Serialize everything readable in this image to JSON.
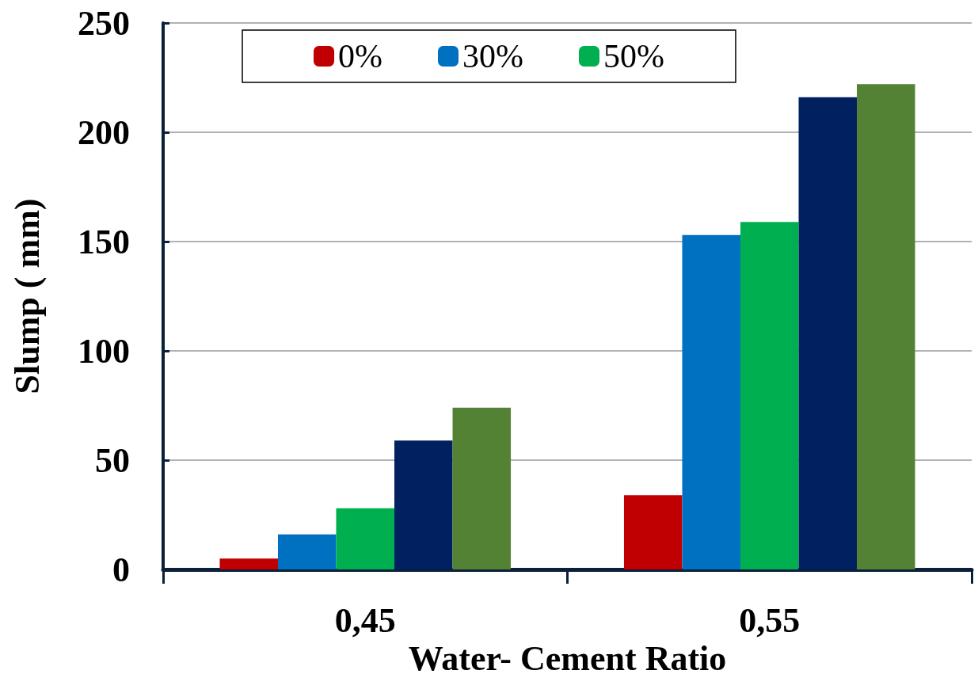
{
  "chart_data": {
    "type": "bar",
    "xlabel": "Water- Cement Ratio",
    "ylabel": "Slump ( mm)",
    "categories": [
      "0,45",
      "0,55"
    ],
    "series": [
      {
        "name": "0%",
        "color": "#c00000",
        "values": [
          5,
          34
        ]
      },
      {
        "name": "30%",
        "color": "#0070c0",
        "values": [
          16,
          153
        ]
      },
      {
        "name": "50%",
        "color": "#00b050",
        "values": [
          28,
          159
        ]
      },
      {
        "color": "#002060",
        "values": [
          59,
          216
        ]
      },
      {
        "color": "#548235",
        "values": [
          74,
          222
        ]
      }
    ],
    "ylim": [
      0,
      250
    ],
    "yticks": [
      0,
      50,
      100,
      150,
      200,
      250
    ],
    "grid": "y",
    "legend": "top"
  }
}
